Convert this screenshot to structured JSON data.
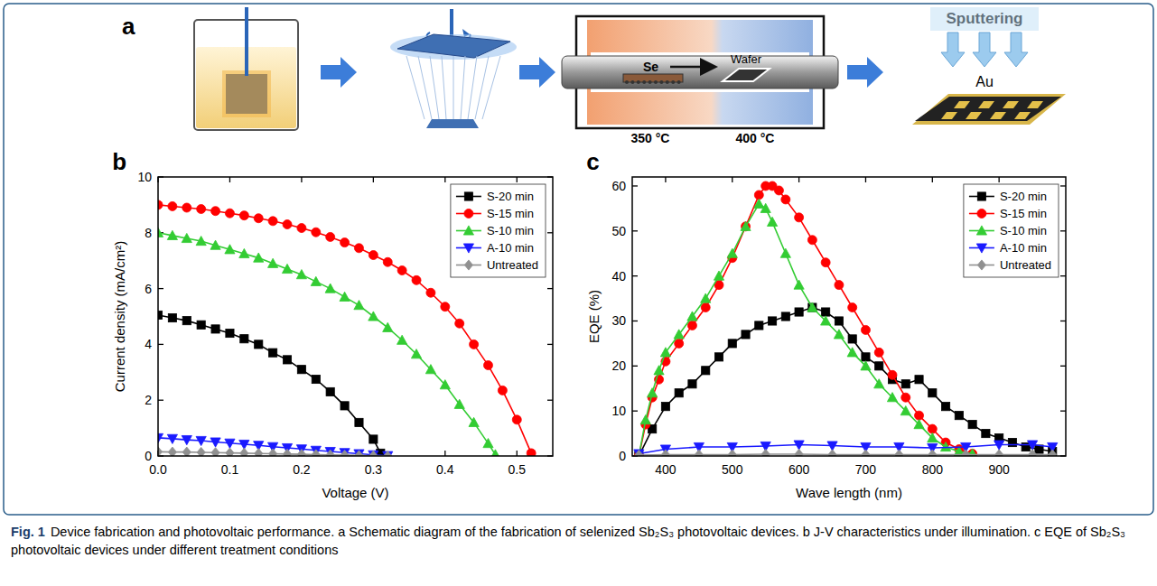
{
  "panels": [
    "a",
    "b",
    "c"
  ],
  "schematic": {
    "se": "Se",
    "wafer": "Wafer",
    "left_temp": "350 °C",
    "right_temp": "400 °C",
    "sputtering": "Sputtering",
    "target": "Au"
  },
  "caption": {
    "label": "Fig. 1",
    "text": "Device fabrication and photovoltaic performance. a Schematic diagram of the fabrication of selenized Sb₂S₃ photovoltaic devices. b J-V characteristics under illumination. c EQE of Sb₂S₃ photovoltaic devices under different treatment conditions"
  },
  "chart_data": [
    {
      "type": "line",
      "x_label": "Voltage (V)",
      "y_label": "Current density (mA/cm²)",
      "xlim": [
        0,
        0.55
      ],
      "xticks": [
        {
          "value": 0,
          "label": "0.0"
        },
        0.1,
        0.2,
        0.3,
        0.4,
        0.5
      ],
      "ylim": [
        0,
        10
      ],
      "yticks": [
        0,
        2,
        4,
        6,
        8,
        10
      ],
      "grid": false,
      "legend": "top-right",
      "series": [
        {
          "name": "S-20 min",
          "color": "#000000",
          "marker": "square",
          "x": [
            0,
            0.02,
            0.04,
            0.06,
            0.08,
            0.1,
            0.12,
            0.14,
            0.16,
            0.18,
            0.2,
            0.22,
            0.24,
            0.26,
            0.28,
            0.3,
            0.31
          ],
          "values": [
            5.05,
            4.95,
            4.85,
            4.7,
            4.55,
            4.4,
            4.2,
            4.0,
            3.7,
            3.45,
            3.1,
            2.75,
            2.3,
            1.8,
            1.2,
            0.6,
            0.1
          ]
        },
        {
          "name": "S-15 min",
          "color": "#ff0000",
          "marker": "circle",
          "x": [
            0,
            0.02,
            0.04,
            0.06,
            0.08,
            0.1,
            0.12,
            0.14,
            0.16,
            0.18,
            0.2,
            0.22,
            0.24,
            0.26,
            0.28,
            0.3,
            0.32,
            0.34,
            0.36,
            0.38,
            0.4,
            0.42,
            0.44,
            0.46,
            0.48,
            0.5,
            0.52
          ],
          "values": [
            9.0,
            8.95,
            8.9,
            8.85,
            8.78,
            8.7,
            8.62,
            8.52,
            8.42,
            8.3,
            8.17,
            8.02,
            7.85,
            7.65,
            7.45,
            7.2,
            6.95,
            6.65,
            6.3,
            5.85,
            5.35,
            4.75,
            4.0,
            3.25,
            2.35,
            1.3,
            0.1
          ]
        },
        {
          "name": "S-10 min",
          "color": "#33cc33",
          "marker": "triangle-up",
          "x": [
            0,
            0.02,
            0.04,
            0.06,
            0.08,
            0.1,
            0.12,
            0.14,
            0.16,
            0.18,
            0.2,
            0.22,
            0.24,
            0.26,
            0.28,
            0.3,
            0.32,
            0.34,
            0.36,
            0.38,
            0.4,
            0.42,
            0.44,
            0.46,
            0.47
          ],
          "values": [
            8.0,
            7.9,
            7.8,
            7.7,
            7.55,
            7.4,
            7.25,
            7.1,
            6.9,
            6.7,
            6.5,
            6.25,
            6.0,
            5.7,
            5.4,
            5.0,
            4.6,
            4.15,
            3.65,
            3.1,
            2.55,
            1.85,
            1.2,
            0.45,
            0.05
          ]
        },
        {
          "name": "A-10 min",
          "color": "#1a1aff",
          "marker": "triangle-down",
          "x": [
            0,
            0.02,
            0.04,
            0.06,
            0.08,
            0.1,
            0.12,
            0.14,
            0.16,
            0.18,
            0.2,
            0.22,
            0.24,
            0.26,
            0.28,
            0.3,
            0.32
          ],
          "values": [
            0.65,
            0.62,
            0.58,
            0.55,
            0.5,
            0.46,
            0.42,
            0.38,
            0.33,
            0.29,
            0.25,
            0.2,
            0.16,
            0.12,
            0.08,
            0.04,
            0.01
          ]
        },
        {
          "name": "Untreated",
          "color": "#909090",
          "marker": "diamond",
          "x": [
            0,
            0.02,
            0.04,
            0.06,
            0.08,
            0.1,
            0.12,
            0.14,
            0.16,
            0.18,
            0.2,
            0.22,
            0.24,
            0.26,
            0.28,
            0.3,
            0.32
          ],
          "values": [
            0.15,
            0.14,
            0.14,
            0.13,
            0.12,
            0.11,
            0.1,
            0.09,
            0.08,
            0.07,
            0.06,
            0.05,
            0.04,
            0.03,
            0.02,
            0.01,
            0.0
          ]
        }
      ]
    },
    {
      "type": "line",
      "x_label": "Wave length (nm)",
      "y_label": "EQE (%)",
      "xlim": [
        350,
        1000
      ],
      "xticks": [
        400,
        500,
        600,
        700,
        800,
        900
      ],
      "ylim": [
        0,
        62
      ],
      "yticks": [
        0,
        10,
        20,
        30,
        40,
        50,
        60
      ],
      "grid": false,
      "legend": "top-right",
      "series": [
        {
          "name": "S-20 min",
          "color": "#000000",
          "marker": "square",
          "x": [
            360,
            380,
            400,
            420,
            440,
            460,
            480,
            500,
            520,
            540,
            560,
            580,
            600,
            620,
            640,
            660,
            680,
            700,
            720,
            740,
            760,
            780,
            800,
            820,
            840,
            860,
            880,
            900,
            920,
            940,
            960,
            980
          ],
          "values": [
            0,
            6,
            11,
            14,
            16,
            19,
            22,
            25,
            27,
            29,
            30,
            31,
            32,
            33,
            32,
            30,
            26,
            22,
            20,
            17,
            16,
            17,
            14,
            11,
            9,
            7,
            5,
            4,
            3,
            2,
            1.5,
            1
          ]
        },
        {
          "name": "S-15 min",
          "color": "#ff0000",
          "marker": "circle",
          "x": [
            360,
            370,
            380,
            390,
            400,
            420,
            440,
            460,
            480,
            500,
            520,
            540,
            550,
            560,
            570,
            580,
            600,
            620,
            640,
            660,
            680,
            700,
            720,
            740,
            760,
            780,
            800,
            820,
            840,
            860
          ],
          "values": [
            0,
            7,
            13,
            17,
            21,
            25,
            29,
            33,
            38,
            44,
            51,
            58,
            60,
            60,
            59,
            57,
            53,
            48,
            43,
            38,
            33,
            28,
            23,
            18,
            13,
            9,
            6,
            3,
            1.5,
            0.5
          ]
        },
        {
          "name": "S-10 min",
          "color": "#33cc33",
          "marker": "triangle-up",
          "x": [
            360,
            370,
            380,
            390,
            400,
            420,
            440,
            460,
            480,
            500,
            520,
            540,
            550,
            560,
            580,
            600,
            620,
            640,
            660,
            680,
            700,
            720,
            740,
            760,
            780,
            800,
            820,
            840,
            860
          ],
          "values": [
            0,
            8,
            14,
            19,
            23,
            27,
            31,
            35,
            40,
            45,
            51,
            56,
            55,
            52,
            45,
            38,
            33,
            30,
            27,
            23,
            20,
            16,
            13,
            10,
            7,
            4,
            2,
            1,
            0.5
          ]
        },
        {
          "name": "A-10 min",
          "color": "#1a1aff",
          "marker": "triangle-down",
          "x": [
            360,
            400,
            450,
            500,
            550,
            600,
            650,
            700,
            750,
            800,
            850,
            900,
            950,
            980
          ],
          "values": [
            0.5,
            1.5,
            2,
            2,
            2.2,
            2.5,
            2.3,
            2,
            2,
            1.8,
            2,
            2.5,
            2.5,
            2
          ]
        },
        {
          "name": "Untreated",
          "color": "#909090",
          "marker": "diamond",
          "x": [
            360,
            400,
            450,
            500,
            550,
            600,
            650,
            700,
            750,
            800,
            850,
            900,
            950,
            980
          ],
          "values": [
            0.2,
            0.3,
            0.3,
            0.3,
            0.4,
            0.4,
            0.3,
            0.3,
            0.3,
            0.3,
            0.3,
            0.3,
            0.3,
            0.3
          ]
        }
      ]
    }
  ]
}
